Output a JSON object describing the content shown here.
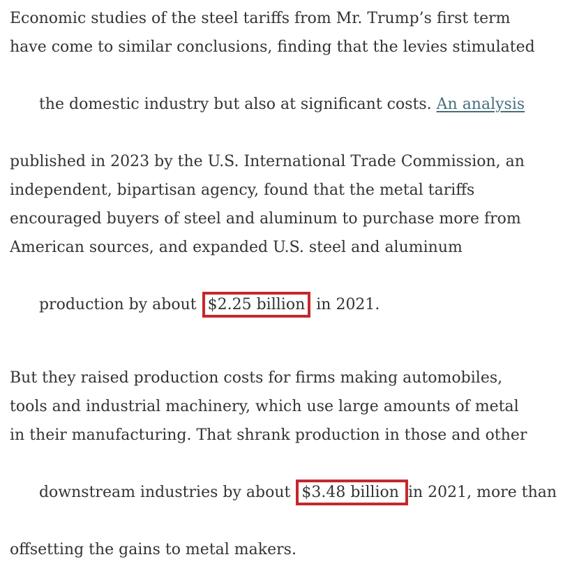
{
  "page": {
    "background_color": "#ffffff",
    "text_color": "#333333",
    "link_color": "#466e7d",
    "highlight_color": "#c4282d"
  },
  "article": {
    "paragraph1": {
      "line1": "Economic studies of the steel tariffs from Mr. Trump’s first term",
      "line2": "have come to similar conclusions, finding that the levies stimulated",
      "line3_before": "the domestic industry but also at significant costs. ",
      "line3_link": "An analysis",
      "line4": "published in 2023 by the U.S. International Trade Commission, an",
      "line5": "independent, bipartisan agency, found that the metal tariffs",
      "line6": "encouraged buyers of steel and aluminum to purchase more from",
      "line7": "American sources, and expanded U.S. steel and aluminum",
      "line8_before": "production by about ",
      "line8_boxed": "$2.25 billion",
      "line8_after": " in 2021."
    },
    "paragraph2": {
      "line1": "But they raised production costs for firms making automobiles,",
      "line2": "tools and industrial machinery, which use large amounts of metal",
      "line3": "in their manufacturing. That shrank production in those and other",
      "line4_before": "downstream industries by about ",
      "line4_boxed": "$3.48 billion",
      "line4_after": "in 2021, more than",
      "line5": "offsetting the gains to metal makers."
    }
  }
}
